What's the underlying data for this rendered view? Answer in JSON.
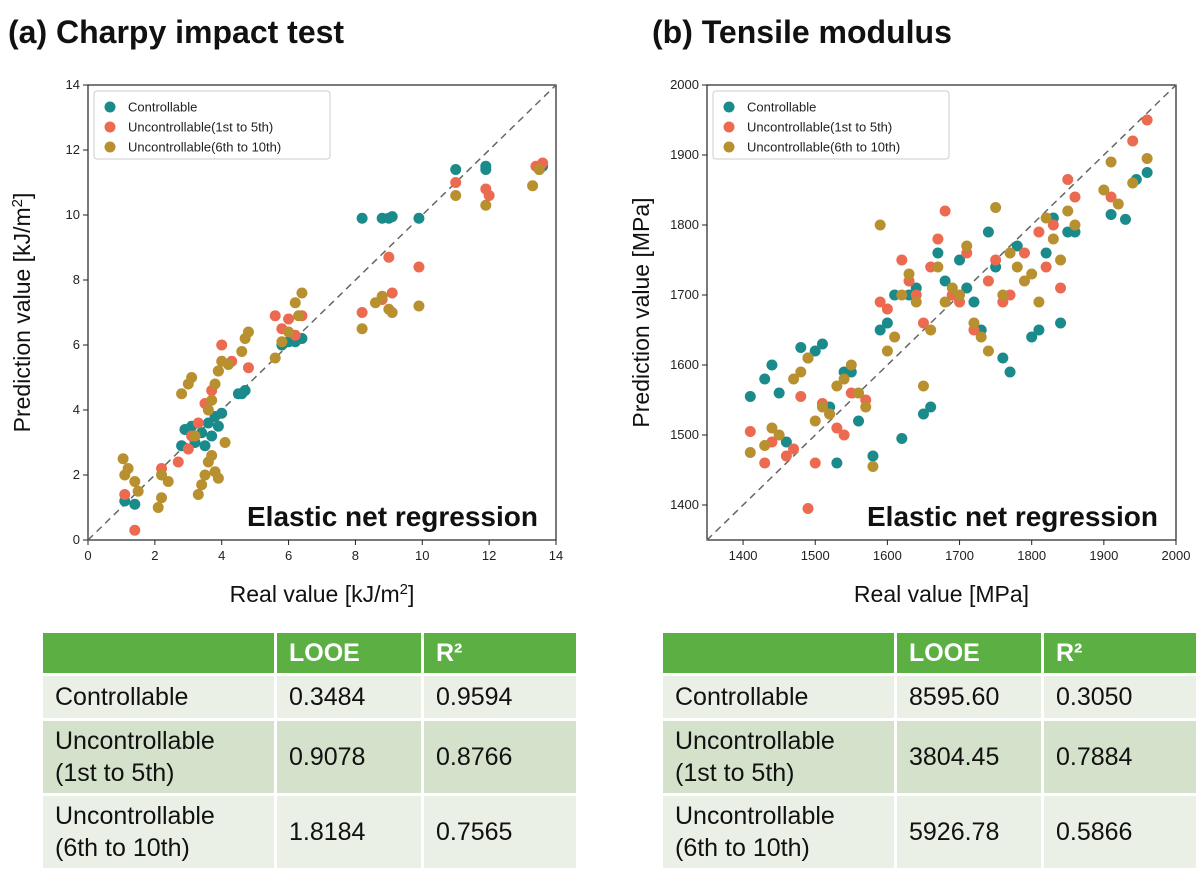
{
  "panel_a": {
    "title": "(a) Charpy impact test",
    "annotation": "Elastic net regression",
    "table": {
      "headers": [
        "",
        "LOOE",
        "R²"
      ],
      "rows": [
        {
          "label": "Controllable",
          "looe": "0.3484",
          "r2": "0.9594"
        },
        {
          "label": "Uncontrollable (1st to 5th)",
          "label_line1": "Uncontrollable",
          "label_line2": "(1st to 5th)",
          "looe": "0.9078",
          "r2": "0.8766"
        },
        {
          "label": "Uncontrollable (6th to 10th)",
          "label_line1": "Uncontrollable",
          "label_line2": "(6th to 10th)",
          "looe": "1.8184",
          "r2": "0.7565"
        }
      ]
    }
  },
  "panel_b": {
    "title": "(b) Tensile modulus",
    "annotation": "Elastic net regression",
    "table": {
      "headers": [
        "",
        "LOOE",
        "R²"
      ],
      "rows": [
        {
          "label": "Controllable",
          "looe": "8595.60",
          "r2": "0.3050"
        },
        {
          "label": "Uncontrollable (1st to 5th)",
          "label_line1": "Uncontrollable",
          "label_line2": "(1st to 5th)",
          "looe": "3804.45",
          "r2": "0.7884"
        },
        {
          "label": "Uncontrollable (6th to 10th)",
          "label_line1": "Uncontrollable",
          "label_line2": "(6th to 10th)",
          "looe": "5926.78",
          "r2": "0.5866"
        }
      ]
    }
  },
  "colors": {
    "controllable": "#1b8a8a",
    "unc_1_5": "#ec6a4f",
    "unc_6_10": "#b8902f",
    "table_header": "#5cb043"
  },
  "chart_data": [
    {
      "type": "scatter",
      "title": "(a) Charpy impact test",
      "xlabel": "Real value [kJ/m²]",
      "ylabel": "Prediction value [kJ/m²]",
      "xlim": [
        0,
        14
      ],
      "ylim": [
        0,
        14
      ],
      "xticks": [
        0,
        2,
        4,
        6,
        8,
        10,
        12,
        14
      ],
      "yticks": [
        0,
        2,
        4,
        6,
        8,
        10,
        12,
        14
      ],
      "grid": false,
      "legend": "top-left",
      "reference_line": "y = x (dashed)",
      "series": [
        {
          "name": "Controllable",
          "color": "#1b8a8a",
          "points": [
            [
              1.1,
              1.2
            ],
            [
              1.4,
              1.1
            ],
            [
              2.8,
              2.9
            ],
            [
              2.9,
              3.4
            ],
            [
              3.1,
              3.5
            ],
            [
              3.2,
              3.0
            ],
            [
              3.4,
              3.3
            ],
            [
              3.5,
              2.9
            ],
            [
              3.6,
              3.6
            ],
            [
              3.7,
              3.2
            ],
            [
              3.8,
              3.8
            ],
            [
              3.9,
              3.5
            ],
            [
              4.0,
              3.9
            ],
            [
              4.5,
              4.5
            ],
            [
              4.6,
              4.5
            ],
            [
              4.7,
              4.6
            ],
            [
              5.8,
              6.0
            ],
            [
              6.0,
              6.1
            ],
            [
              6.2,
              6.1
            ],
            [
              6.4,
              6.2
            ],
            [
              8.2,
              9.9
            ],
            [
              8.8,
              9.9
            ],
            [
              9.0,
              9.9
            ],
            [
              9.1,
              9.95
            ],
            [
              9.9,
              9.9
            ],
            [
              11.0,
              11.4
            ],
            [
              11.9,
              11.4
            ],
            [
              11.9,
              11.5
            ],
            [
              13.5,
              11.4
            ],
            [
              13.6,
              11.5
            ]
          ]
        },
        {
          "name": "Uncontrollable(1st to 5th)",
          "color": "#ec6a4f",
          "points": [
            [
              1.1,
              1.4
            ],
            [
              1.4,
              0.3
            ],
            [
              2.2,
              2.2
            ],
            [
              2.7,
              2.4
            ],
            [
              3.0,
              2.8
            ],
            [
              3.1,
              3.2
            ],
            [
              3.3,
              3.6
            ],
            [
              3.5,
              4.2
            ],
            [
              3.7,
              4.6
            ],
            [
              3.9,
              5.2
            ],
            [
              4.0,
              6.0
            ],
            [
              4.3,
              5.5
            ],
            [
              4.8,
              5.3
            ],
            [
              5.6,
              6.9
            ],
            [
              5.8,
              6.5
            ],
            [
              6.0,
              6.8
            ],
            [
              6.2,
              6.3
            ],
            [
              6.4,
              6.9
            ],
            [
              8.2,
              7.0
            ],
            [
              8.8,
              7.4
            ],
            [
              9.0,
              8.7
            ],
            [
              9.1,
              7.6
            ],
            [
              9.9,
              8.4
            ],
            [
              11.0,
              11.0
            ],
            [
              11.9,
              10.8
            ],
            [
              12.0,
              10.6
            ],
            [
              13.4,
              11.5
            ],
            [
              13.6,
              11.6
            ]
          ]
        },
        {
          "name": "Uncontrollable(6th to 10th)",
          "color": "#b8902f",
          "points": [
            [
              1.05,
              2.5
            ],
            [
              1.1,
              2.0
            ],
            [
              1.2,
              2.2
            ],
            [
              1.4,
              1.8
            ],
            [
              1.5,
              1.5
            ],
            [
              2.1,
              1.0
            ],
            [
              2.2,
              1.3
            ],
            [
              2.2,
              2.0
            ],
            [
              2.4,
              1.8
            ],
            [
              2.8,
              4.5
            ],
            [
              3.0,
              4.8
            ],
            [
              3.1,
              5.0
            ],
            [
              3.2,
              3.2
            ],
            [
              3.3,
              1.4
            ],
            [
              3.4,
              1.7
            ],
            [
              3.5,
              2.0
            ],
            [
              3.6,
              2.4
            ],
            [
              3.7,
              2.6
            ],
            [
              3.8,
              2.1
            ],
            [
              3.9,
              1.9
            ],
            [
              3.6,
              4.0
            ],
            [
              3.7,
              4.3
            ],
            [
              3.8,
              4.8
            ],
            [
              3.9,
              5.2
            ],
            [
              4.0,
              5.5
            ],
            [
              4.1,
              3.0
            ],
            [
              4.2,
              5.4
            ],
            [
              4.6,
              5.8
            ],
            [
              4.7,
              6.2
            ],
            [
              4.8,
              6.4
            ],
            [
              5.6,
              5.6
            ],
            [
              5.8,
              6.1
            ],
            [
              6.0,
              6.4
            ],
            [
              6.2,
              7.3
            ],
            [
              6.3,
              6.9
            ],
            [
              6.4,
              7.6
            ],
            [
              8.2,
              6.5
            ],
            [
              8.6,
              7.3
            ],
            [
              8.8,
              7.5
            ],
            [
              9.0,
              7.1
            ],
            [
              9.1,
              7.0
            ],
            [
              9.9,
              7.2
            ],
            [
              11.0,
              10.6
            ],
            [
              11.9,
              10.3
            ],
            [
              13.3,
              10.9
            ],
            [
              13.5,
              11.4
            ]
          ]
        }
      ]
    },
    {
      "type": "scatter",
      "title": "(b) Tensile modulus",
      "xlabel": "Real value [MPa]",
      "ylabel": "Prediction value [MPa]",
      "xlim": [
        1350,
        2000
      ],
      "ylim": [
        1350,
        2000
      ],
      "xticks": [
        1400,
        1500,
        1600,
        1700,
        1800,
        1900,
        2000
      ],
      "yticks": [
        1400,
        1500,
        1600,
        1700,
        1800,
        1900,
        2000
      ],
      "grid": false,
      "legend": "top-left",
      "reference_line": "y = x (dashed)",
      "series": [
        {
          "name": "Controllable",
          "color": "#1b8a8a",
          "points": [
            [
              1410,
              1555
            ],
            [
              1430,
              1580
            ],
            [
              1440,
              1600
            ],
            [
              1450,
              1560
            ],
            [
              1460,
              1490
            ],
            [
              1480,
              1625
            ],
            [
              1490,
              1610
            ],
            [
              1500,
              1620
            ],
            [
              1510,
              1630
            ],
            [
              1520,
              1540
            ],
            [
              1530,
              1460
            ],
            [
              1540,
              1590
            ],
            [
              1550,
              1590
            ],
            [
              1560,
              1520
            ],
            [
              1580,
              1470
            ],
            [
              1590,
              1650
            ],
            [
              1600,
              1660
            ],
            [
              1610,
              1700
            ],
            [
              1620,
              1495
            ],
            [
              1630,
              1700
            ],
            [
              1640,
              1710
            ],
            [
              1650,
              1530
            ],
            [
              1660,
              1540
            ],
            [
              1670,
              1760
            ],
            [
              1680,
              1720
            ],
            [
              1690,
              1700
            ],
            [
              1700,
              1750
            ],
            [
              1710,
              1710
            ],
            [
              1720,
              1690
            ],
            [
              1730,
              1650
            ],
            [
              1740,
              1790
            ],
            [
              1750,
              1740
            ],
            [
              1760,
              1610
            ],
            [
              1770,
              1590
            ],
            [
              1780,
              1770
            ],
            [
              1800,
              1640
            ],
            [
              1810,
              1650
            ],
            [
              1820,
              1760
            ],
            [
              1830,
              1810
            ],
            [
              1840,
              1660
            ],
            [
              1850,
              1790
            ],
            [
              1860,
              1790
            ],
            [
              1910,
              1815
            ],
            [
              1930,
              1808
            ],
            [
              1945,
              1865
            ],
            [
              1960,
              1875
            ]
          ]
        },
        {
          "name": "Uncontrollable(1st to 5th)",
          "color": "#ec6a4f",
          "points": [
            [
              1410,
              1505
            ],
            [
              1430,
              1460
            ],
            [
              1440,
              1490
            ],
            [
              1460,
              1470
            ],
            [
              1470,
              1480
            ],
            [
              1480,
              1555
            ],
            [
              1490,
              1395
            ],
            [
              1500,
              1460
            ],
            [
              1510,
              1545
            ],
            [
              1520,
              1530
            ],
            [
              1530,
              1510
            ],
            [
              1540,
              1500
            ],
            [
              1550,
              1560
            ],
            [
              1570,
              1550
            ],
            [
              1590,
              1690
            ],
            [
              1600,
              1680
            ],
            [
              1620,
              1750
            ],
            [
              1630,
              1720
            ],
            [
              1640,
              1700
            ],
            [
              1650,
              1660
            ],
            [
              1660,
              1740
            ],
            [
              1670,
              1780
            ],
            [
              1680,
              1820
            ],
            [
              1690,
              1700
            ],
            [
              1700,
              1690
            ],
            [
              1710,
              1760
            ],
            [
              1720,
              1650
            ],
            [
              1740,
              1720
            ],
            [
              1750,
              1750
            ],
            [
              1760,
              1690
            ],
            [
              1770,
              1700
            ],
            [
              1790,
              1760
            ],
            [
              1810,
              1790
            ],
            [
              1820,
              1740
            ],
            [
              1830,
              1800
            ],
            [
              1840,
              1710
            ],
            [
              1850,
              1865
            ],
            [
              1860,
              1840
            ],
            [
              1910,
              1840
            ],
            [
              1940,
              1920
            ],
            [
              1960,
              1950
            ]
          ]
        },
        {
          "name": "Uncontrollable(6th to 10th)",
          "color": "#b8902f",
          "points": [
            [
              1410,
              1475
            ],
            [
              1430,
              1485
            ],
            [
              1440,
              1510
            ],
            [
              1450,
              1500
            ],
            [
              1470,
              1580
            ],
            [
              1480,
              1590
            ],
            [
              1490,
              1610
            ],
            [
              1500,
              1520
            ],
            [
              1510,
              1540
            ],
            [
              1520,
              1530
            ],
            [
              1530,
              1570
            ],
            [
              1540,
              1580
            ],
            [
              1550,
              1600
            ],
            [
              1560,
              1560
            ],
            [
              1570,
              1540
            ],
            [
              1580,
              1455
            ],
            [
              1590,
              1800
            ],
            [
              1600,
              1620
            ],
            [
              1610,
              1640
            ],
            [
              1620,
              1700
            ],
            [
              1630,
              1730
            ],
            [
              1640,
              1690
            ],
            [
              1650,
              1570
            ],
            [
              1660,
              1650
            ],
            [
              1670,
              1740
            ],
            [
              1680,
              1690
            ],
            [
              1690,
              1710
            ],
            [
              1700,
              1700
            ],
            [
              1710,
              1770
            ],
            [
              1720,
              1660
            ],
            [
              1730,
              1640
            ],
            [
              1740,
              1620
            ],
            [
              1750,
              1825
            ],
            [
              1760,
              1700
            ],
            [
              1770,
              1760
            ],
            [
              1780,
              1740
            ],
            [
              1790,
              1720
            ],
            [
              1800,
              1730
            ],
            [
              1810,
              1690
            ],
            [
              1820,
              1810
            ],
            [
              1830,
              1780
            ],
            [
              1840,
              1750
            ],
            [
              1850,
              1820
            ],
            [
              1860,
              1800
            ],
            [
              1900,
              1850
            ],
            [
              1910,
              1890
            ],
            [
              1920,
              1830
            ],
            [
              1940,
              1860
            ],
            [
              1960,
              1895
            ]
          ]
        }
      ]
    }
  ]
}
